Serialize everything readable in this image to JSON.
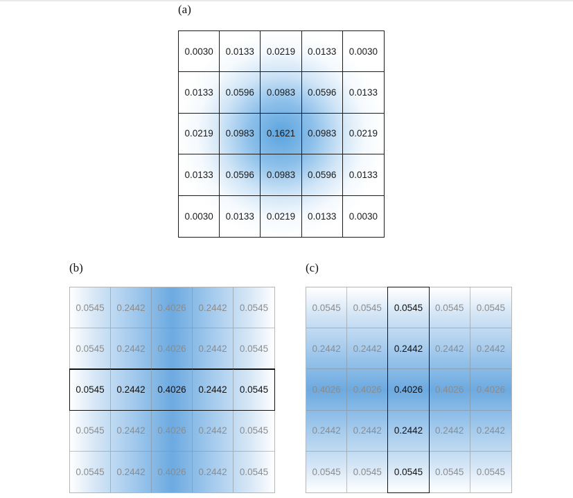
{
  "labels": {
    "a": "(a)",
    "b": "(b)",
    "c": "(c)"
  },
  "colors": {
    "accent": "#5ba4de",
    "line": "#1a1a1a",
    "muted": "#8c8c8c"
  },
  "grid_a": [
    [
      "0.0030",
      "0.0133",
      "0.0219",
      "0.0133",
      "0.0030"
    ],
    [
      "0.0133",
      "0.0596",
      "0.0983",
      "0.0596",
      "0.0133"
    ],
    [
      "0.0219",
      "0.0983",
      "0.1621",
      "0.0983",
      "0.0219"
    ],
    [
      "0.0133",
      "0.0596",
      "0.0983",
      "0.0596",
      "0.0133"
    ],
    [
      "0.0030",
      "0.0133",
      "0.0219",
      "0.0133",
      "0.0030"
    ]
  ],
  "grid_b": [
    [
      "0.0545",
      "0.2442",
      "0.4026",
      "0.2442",
      "0.0545"
    ],
    [
      "0.0545",
      "0.2442",
      "0.4026",
      "0.2442",
      "0.0545"
    ],
    [
      "0.0545",
      "0.2442",
      "0.4026",
      "0.2442",
      "0.0545"
    ],
    [
      "0.0545",
      "0.2442",
      "0.4026",
      "0.2442",
      "0.0545"
    ],
    [
      "0.0545",
      "0.2442",
      "0.4026",
      "0.2442",
      "0.0545"
    ]
  ],
  "grid_b_highlight_row": 2,
  "grid_c": [
    [
      "0.0545",
      "0.0545",
      "0.0545",
      "0.0545",
      "0.0545"
    ],
    [
      "0.2442",
      "0.2442",
      "0.2442",
      "0.2442",
      "0.2442"
    ],
    [
      "0.4026",
      "0.4026",
      "0.4026",
      "0.4026",
      "0.4026"
    ],
    [
      "0.2442",
      "0.2442",
      "0.2442",
      "0.2442",
      "0.2442"
    ],
    [
      "0.0545",
      "0.0545",
      "0.0545",
      "0.0545",
      "0.0545"
    ]
  ],
  "grid_c_highlight_col": 2
}
